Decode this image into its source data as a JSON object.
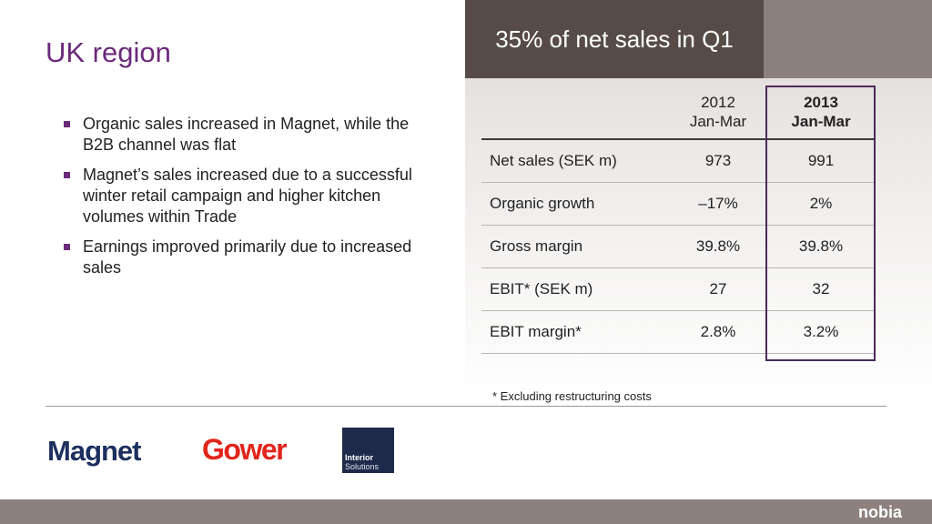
{
  "slide": {
    "title": "UK region",
    "header": "35% of net sales in Q1"
  },
  "bullets": [
    "Organic sales increased in Magnet, while the B2B channel was flat",
    "Magnet’s sales increased due to a successful winter retail campaign and higher kitchen volumes within Trade",
    "Earnings improved primarily due to increased sales"
  ],
  "table": {
    "columns": [
      {
        "year": "2012",
        "period": "Jan-Mar"
      },
      {
        "year": "2013",
        "period": "Jan-Mar"
      }
    ],
    "rows": [
      {
        "label": "Net sales (SEK m)",
        "v2012": "973",
        "v2013": "991"
      },
      {
        "label": "Organic growth",
        "v2012": "–17%",
        "v2013": "2%"
      },
      {
        "label": "Gross margin",
        "v2012": "39.8%",
        "v2013": "39.8%"
      },
      {
        "label": "EBIT* (SEK m)",
        "v2012": "27",
        "v2013": "32"
      },
      {
        "label": "EBIT margin*",
        "v2012": "2.8%",
        "v2013": "3.2%"
      }
    ],
    "highlight_color": "#4a2a5a"
  },
  "footnote": "* Excluding restructuring costs",
  "logos": {
    "magnet": "Magnet",
    "gower": "Gower",
    "interior_line1": "Interior",
    "interior_line2": "Solutions",
    "nobia": "nobia"
  },
  "colors": {
    "title": "#6b2a7a",
    "header_band": "#564b47",
    "footer_bar": "#8c817d",
    "magnet": "#1d2f5e",
    "gower": "#e1261c"
  }
}
